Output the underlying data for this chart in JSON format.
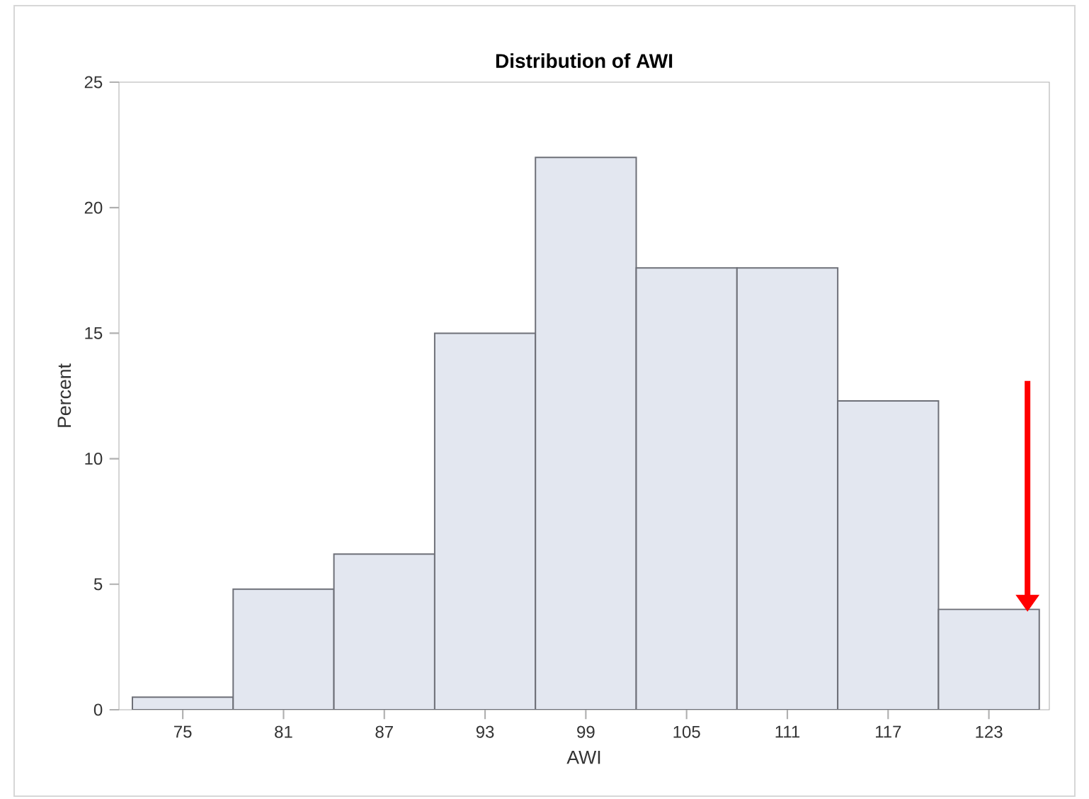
{
  "chart_data": {
    "type": "histogram",
    "title": "Distribution of AWI",
    "xlabel": "AWI",
    "ylabel": "Percent",
    "bins": [
      72,
      78,
      84,
      90,
      96,
      102,
      108,
      114,
      120,
      126
    ],
    "values": [
      0.5,
      4.8,
      6.2,
      15,
      22,
      17.6,
      17.6,
      12.3,
      4.0
    ],
    "color": "#e3e7f0",
    "xlim": [
      71.2,
      126.6
    ],
    "ylim": [
      0,
      25
    ],
    "xticks": [
      75,
      81,
      87,
      93,
      99,
      105,
      111,
      117,
      123
    ],
    "yticks": [
      0,
      5,
      10,
      15,
      20,
      25
    ],
    "grid": false
  }
}
